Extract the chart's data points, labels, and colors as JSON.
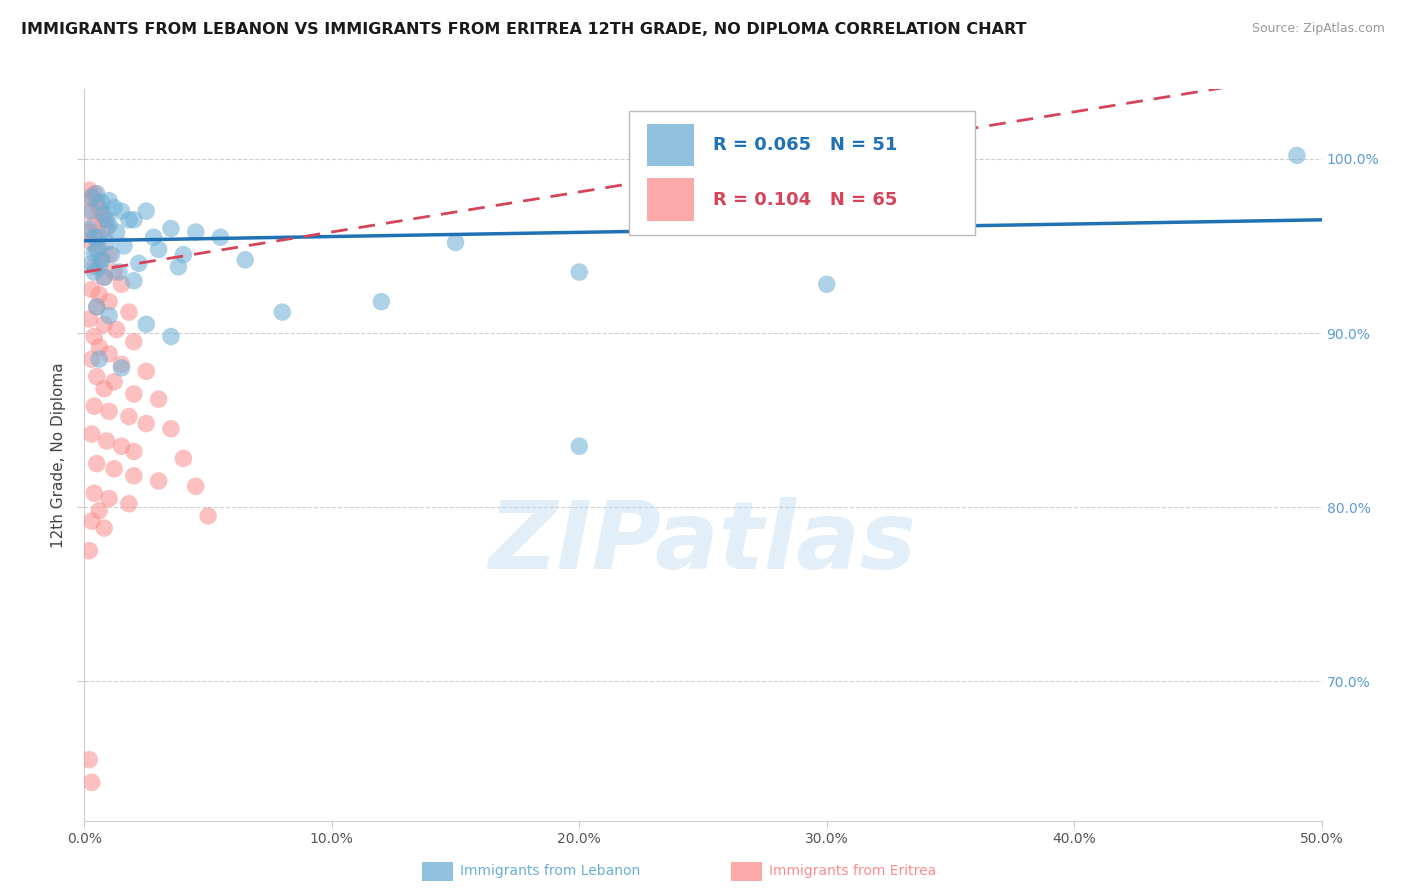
{
  "title": "IMMIGRANTS FROM LEBANON VS IMMIGRANTS FROM ERITREA 12TH GRADE, NO DIPLOMA CORRELATION CHART",
  "source": "Source: ZipAtlas.com",
  "xlabel_lebanon": "Immigrants from Lebanon",
  "xlabel_eritrea": "Immigrants from Eritrea",
  "ylabel": "12th Grade, No Diploma",
  "watermark": "ZIPatlas",
  "xlim": [
    0.0,
    50.0
  ],
  "ylim": [
    62.0,
    104.0
  ],
  "x_ticks": [
    0.0,
    10.0,
    20.0,
    30.0,
    40.0,
    50.0
  ],
  "y_ticks": [
    70.0,
    80.0,
    90.0,
    100.0
  ],
  "y_tick_labels": [
    "70.0%",
    "80.0%",
    "90.0%",
    "100.0%"
  ],
  "legend_R_lebanon": "R = 0.065",
  "legend_N_lebanon": "N = 51",
  "legend_R_eritrea": "R = 0.104",
  "legend_N_eritrea": "N = 65",
  "blue_color": "#6BAED6",
  "pink_color": "#FC8D8D",
  "blue_line_color": "#2171B5",
  "pink_line_color": "#D6445A",
  "lebanon_points": [
    [
      0.3,
      97.8
    ],
    [
      0.5,
      98.0
    ],
    [
      0.7,
      97.5
    ],
    [
      1.0,
      97.6
    ],
    [
      1.2,
      97.2
    ],
    [
      1.5,
      97.0
    ],
    [
      0.8,
      96.8
    ],
    [
      1.8,
      96.5
    ],
    [
      2.0,
      96.5
    ],
    [
      2.5,
      97.0
    ],
    [
      1.0,
      96.2
    ],
    [
      1.3,
      95.8
    ],
    [
      0.4,
      95.5
    ],
    [
      0.6,
      95.5
    ],
    [
      3.5,
      96.0
    ],
    [
      4.5,
      95.8
    ],
    [
      0.2,
      96.0
    ],
    [
      2.8,
      95.5
    ],
    [
      0.9,
      95.2
    ],
    [
      1.6,
      95.0
    ],
    [
      0.5,
      94.8
    ],
    [
      1.1,
      94.5
    ],
    [
      0.7,
      94.2
    ],
    [
      3.0,
      94.8
    ],
    [
      5.5,
      95.5
    ],
    [
      0.3,
      94.0
    ],
    [
      0.6,
      93.8
    ],
    [
      2.2,
      94.0
    ],
    [
      4.0,
      94.5
    ],
    [
      6.5,
      94.2
    ],
    [
      0.4,
      93.5
    ],
    [
      1.4,
      93.5
    ],
    [
      3.8,
      93.8
    ],
    [
      0.8,
      93.2
    ],
    [
      2.0,
      93.0
    ],
    [
      15.0,
      95.2
    ],
    [
      20.0,
      93.5
    ],
    [
      30.0,
      92.8
    ],
    [
      0.5,
      91.5
    ],
    [
      1.0,
      91.0
    ],
    [
      2.5,
      90.5
    ],
    [
      3.5,
      89.8
    ],
    [
      8.0,
      91.2
    ],
    [
      12.0,
      91.8
    ],
    [
      0.6,
      88.5
    ],
    [
      1.5,
      88.0
    ],
    [
      20.0,
      83.5
    ],
    [
      49.0,
      100.2
    ],
    [
      0.3,
      97.0
    ],
    [
      0.9,
      96.5
    ],
    [
      0.4,
      94.6
    ]
  ],
  "eritrea_points": [
    [
      0.2,
      98.2
    ],
    [
      0.4,
      98.0
    ],
    [
      0.3,
      97.8
    ],
    [
      0.5,
      97.5
    ],
    [
      0.6,
      97.2
    ],
    [
      0.1,
      97.0
    ],
    [
      0.7,
      96.8
    ],
    [
      0.8,
      96.5
    ],
    [
      0.4,
      96.2
    ],
    [
      0.9,
      96.0
    ],
    [
      0.2,
      95.8
    ],
    [
      0.5,
      95.5
    ],
    [
      0.3,
      95.2
    ],
    [
      0.6,
      94.8
    ],
    [
      1.0,
      94.5
    ],
    [
      0.7,
      94.2
    ],
    [
      0.4,
      93.8
    ],
    [
      1.2,
      93.5
    ],
    [
      0.8,
      93.2
    ],
    [
      1.5,
      92.8
    ],
    [
      0.3,
      92.5
    ],
    [
      0.6,
      92.2
    ],
    [
      1.0,
      91.8
    ],
    [
      0.5,
      91.5
    ],
    [
      1.8,
      91.2
    ],
    [
      0.2,
      90.8
    ],
    [
      0.8,
      90.5
    ],
    [
      1.3,
      90.2
    ],
    [
      0.4,
      89.8
    ],
    [
      2.0,
      89.5
    ],
    [
      0.6,
      89.2
    ],
    [
      1.0,
      88.8
    ],
    [
      0.3,
      88.5
    ],
    [
      1.5,
      88.2
    ],
    [
      2.5,
      87.8
    ],
    [
      0.5,
      87.5
    ],
    [
      1.2,
      87.2
    ],
    [
      0.8,
      86.8
    ],
    [
      2.0,
      86.5
    ],
    [
      3.0,
      86.2
    ],
    [
      0.4,
      85.8
    ],
    [
      1.0,
      85.5
    ],
    [
      1.8,
      85.2
    ],
    [
      2.5,
      84.8
    ],
    [
      3.5,
      84.5
    ],
    [
      0.3,
      84.2
    ],
    [
      0.9,
      83.8
    ],
    [
      1.5,
      83.5
    ],
    [
      2.0,
      83.2
    ],
    [
      4.0,
      82.8
    ],
    [
      0.5,
      82.5
    ],
    [
      1.2,
      82.2
    ],
    [
      2.0,
      81.8
    ],
    [
      3.0,
      81.5
    ],
    [
      4.5,
      81.2
    ],
    [
      0.4,
      80.8
    ],
    [
      1.0,
      80.5
    ],
    [
      1.8,
      80.2
    ],
    [
      0.6,
      79.8
    ],
    [
      5.0,
      79.5
    ],
    [
      0.3,
      79.2
    ],
    [
      0.8,
      78.8
    ],
    [
      0.2,
      77.5
    ],
    [
      0.2,
      65.5
    ],
    [
      0.3,
      64.2
    ]
  ]
}
